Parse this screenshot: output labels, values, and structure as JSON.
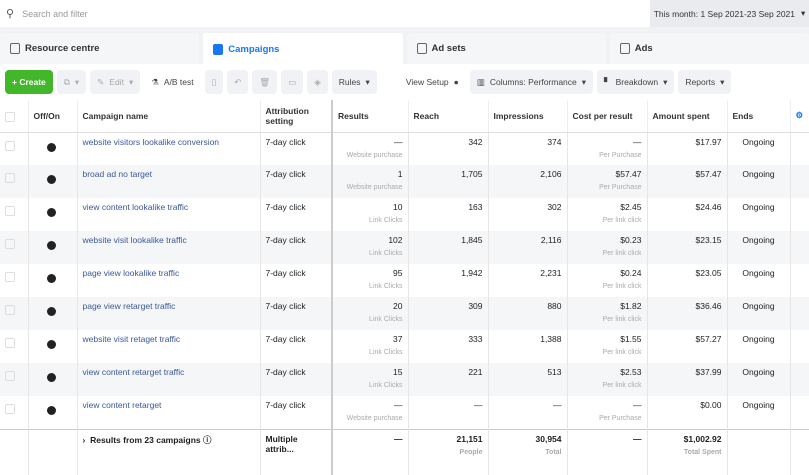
{
  "search": {
    "placeholder": "Search and filter",
    "date_range": "This month: 1 Sep 2021-23 Sep 2021"
  },
  "tabs": [
    "Resource centre",
    "Campaigns",
    "Ad sets",
    "Ads"
  ],
  "toolbar": {
    "create": "+ Create",
    "edit": "Edit",
    "ab_test": "A/B test",
    "rules": "Rules",
    "view_setup": "View Setup",
    "columns": "Columns: Performance",
    "breakdown": "Breakdown",
    "reports": "Reports"
  },
  "columns": [
    "Off/On",
    "Campaign name",
    "Attribution setting",
    "Results",
    "Reach",
    "Impressions",
    "Cost per result",
    "Amount spent",
    "Ends"
  ],
  "rows": [
    {
      "name": "website visitors lookalike conversion",
      "attr": "7-day click",
      "results": "—",
      "results_sub": "Website purchase",
      "reach": "342",
      "impr": "374",
      "cpr": "—",
      "cpr_sub": "Per Purchase",
      "spent": "$17.97",
      "ends": "Ongoing"
    },
    {
      "name": "broad ad no target",
      "attr": "7-day click",
      "results": "1",
      "results_sub": "Website purchase",
      "reach": "1,705",
      "impr": "2,106",
      "cpr": "$57.47",
      "cpr_sub": "Per Purchase",
      "spent": "$57.47",
      "ends": "Ongoing"
    },
    {
      "name": "view content lookalike traffic",
      "attr": "7-day click",
      "results": "10",
      "results_sub": "Link Clicks",
      "reach": "163",
      "impr": "302",
      "cpr": "$2.45",
      "cpr_sub": "Per link click",
      "spent": "$24.46",
      "ends": "Ongoing"
    },
    {
      "name": "website visit lookalike traffic",
      "attr": "7-day click",
      "results": "102",
      "results_sub": "Link Clicks",
      "reach": "1,845",
      "impr": "2,116",
      "cpr": "$0.23",
      "cpr_sub": "Per link click",
      "spent": "$23.15",
      "ends": "Ongoing"
    },
    {
      "name": "page view lookalike traffic",
      "attr": "7-day click",
      "results": "95",
      "results_sub": "Link Clicks",
      "reach": "1,942",
      "impr": "2,231",
      "cpr": "$0.24",
      "cpr_sub": "Per link click",
      "spent": "$23.05",
      "ends": "Ongoing"
    },
    {
      "name": "page view retarget traffic",
      "attr": "7-day click",
      "results": "20",
      "results_sub": "Link Clicks",
      "reach": "309",
      "impr": "880",
      "cpr": "$1.82",
      "cpr_sub": "Per link click",
      "spent": "$36.46",
      "ends": "Ongoing"
    },
    {
      "name": "website visit retaget traffic",
      "attr": "7-day click",
      "results": "37",
      "results_sub": "Link Clicks",
      "reach": "333",
      "impr": "1,388",
      "cpr": "$1.55",
      "cpr_sub": "Per link click",
      "spent": "$57.27",
      "ends": "Ongoing"
    },
    {
      "name": "view content retarget traffic",
      "attr": "7-day click",
      "results": "15",
      "results_sub": "Link Clicks",
      "reach": "221",
      "impr": "513",
      "cpr": "$2.53",
      "cpr_sub": "Per link click",
      "spent": "$37.99",
      "ends": "Ongoing"
    },
    {
      "name": "view content retarget",
      "attr": "7-day click",
      "results": "—",
      "results_sub": "Website purchase",
      "reach": "—",
      "impr": "—",
      "cpr": "—",
      "cpr_sub": "Per Purchase",
      "spent": "$0.00",
      "ends": "Ongoing"
    }
  ],
  "summary": {
    "label": "Results from 23 campaigns",
    "attr": "Multiple attrib...",
    "results": "—",
    "reach": "21,151",
    "reach_sub": "People",
    "impr": "30,954",
    "impr_sub": "Total",
    "cpr": "—",
    "spent": "$1,002.92",
    "spent_sub": "Total Spent"
  }
}
